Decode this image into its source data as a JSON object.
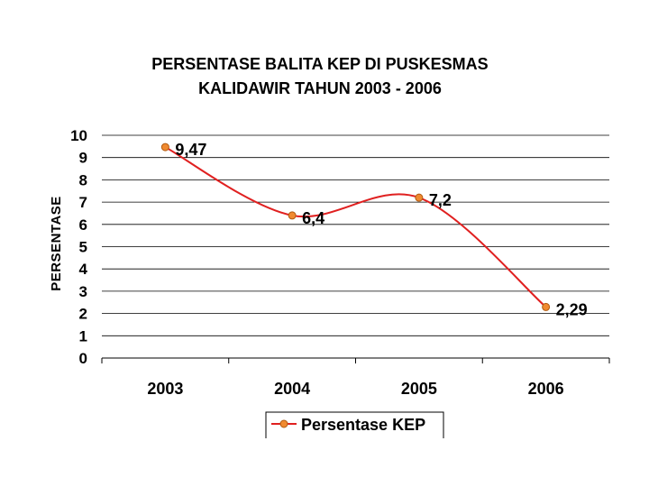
{
  "chart_data": {
    "type": "line",
    "title_lines": [
      "PERSENTASE BALITA KEP DI PUSKESMAS",
      "KALIDAWIR TAHUN 2003 - 2006"
    ],
    "ylabel": "PERSENTASE",
    "xlabel": "",
    "categories": [
      "2003",
      "2004",
      "2005",
      "2006"
    ],
    "series": [
      {
        "name": "Persentase KEP",
        "values": [
          9.47,
          6.4,
          7.2,
          2.29
        ],
        "labels": [
          "9,47",
          "6,4",
          "7,2",
          "2,29"
        ]
      }
    ],
    "ylim": [
      0,
      10
    ],
    "yticks": [
      "0",
      "1",
      "2",
      "3",
      "4",
      "5",
      "6",
      "7",
      "8",
      "9",
      "10"
    ],
    "grid": true,
    "smooth": true,
    "legend_position": "bottom",
    "colors": {
      "line": "#e02020",
      "marker_fill": "#f08a30",
      "marker_stroke": "#b05a10",
      "grid": "#000000"
    }
  }
}
